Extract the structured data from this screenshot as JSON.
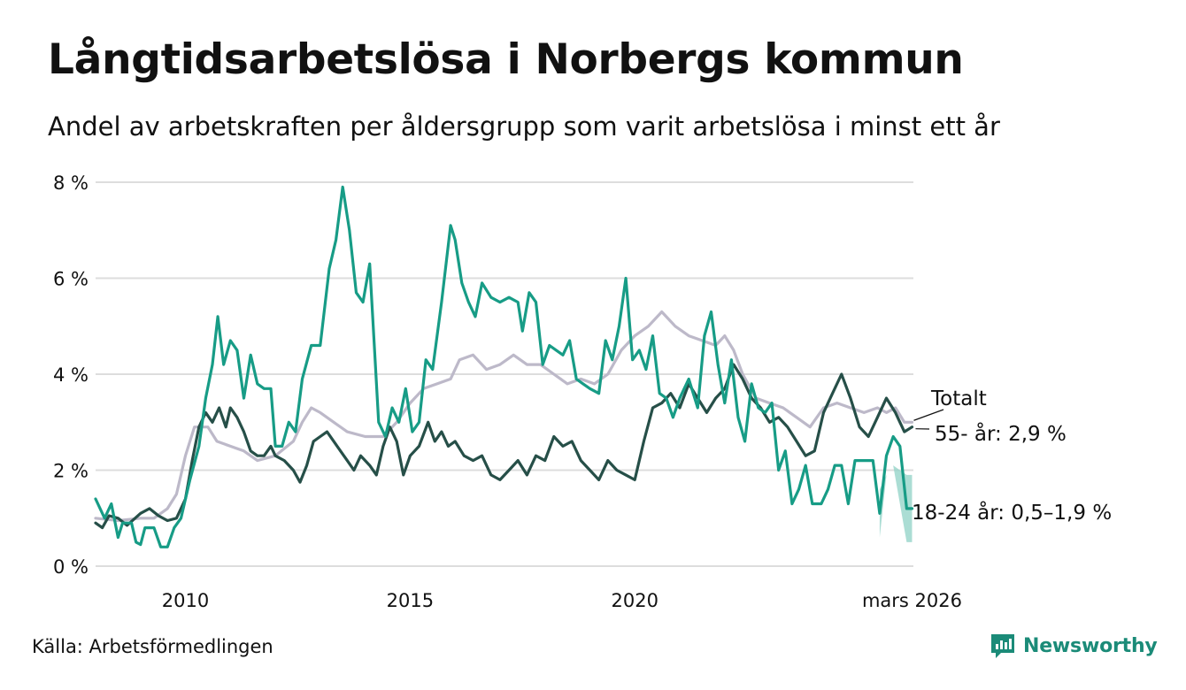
{
  "header": {
    "title": "Långtidsarbetslösa i Norbergs kommun",
    "subtitle": "Andel av arbetskraften per åldersgrupp som varit arbetslösa i minst ett år"
  },
  "footer": {
    "source": "Källa: Arbetsförmedlingen",
    "brand": "Newsworthy"
  },
  "colors": {
    "total": "#bdb9c9",
    "age55": "#264f48",
    "age18_24": "#179c86",
    "range": "#8fd2c6",
    "grid": "#dddddd"
  },
  "chart_data": {
    "type": "line",
    "title": "Långtidsarbetslösa i Norbergs kommun",
    "xlabel": "",
    "ylabel": "",
    "xlim": [
      2008.0,
      2026.2
    ],
    "ylim": [
      0,
      8
    ],
    "y_ticks": [
      0,
      2,
      4,
      6,
      8
    ],
    "y_tick_labels": [
      "0 %",
      "2 %",
      "4 %",
      "6 %",
      "8 %"
    ],
    "x_ticks": [
      2010,
      2015,
      2020,
      2026.17
    ],
    "x_tick_labels": [
      "2010",
      "2015",
      "2020",
      "mars 2026"
    ],
    "grid": true,
    "series": [
      {
        "name": "Totalt",
        "label": "Totalt",
        "points": [
          [
            2008.0,
            1.0
          ],
          [
            2008.5,
            0.95
          ],
          [
            2009.0,
            1.0
          ],
          [
            2009.3,
            1.0
          ],
          [
            2009.6,
            1.2
          ],
          [
            2009.8,
            1.5
          ],
          [
            2010.0,
            2.3
          ],
          [
            2010.2,
            2.9
          ],
          [
            2010.5,
            2.9
          ],
          [
            2010.7,
            2.6
          ],
          [
            2011.0,
            2.5
          ],
          [
            2011.3,
            2.4
          ],
          [
            2011.6,
            2.2
          ],
          [
            2012.0,
            2.3
          ],
          [
            2012.4,
            2.6
          ],
          [
            2012.6,
            3.0
          ],
          [
            2012.8,
            3.3
          ],
          [
            2013.0,
            3.2
          ],
          [
            2013.3,
            3.0
          ],
          [
            2013.6,
            2.8
          ],
          [
            2014.0,
            2.7
          ],
          [
            2014.4,
            2.7
          ],
          [
            2014.7,
            3.0
          ],
          [
            2015.0,
            3.4
          ],
          [
            2015.3,
            3.7
          ],
          [
            2015.6,
            3.8
          ],
          [
            2015.9,
            3.9
          ],
          [
            2016.1,
            4.3
          ],
          [
            2016.4,
            4.4
          ],
          [
            2016.7,
            4.1
          ],
          [
            2017.0,
            4.2
          ],
          [
            2017.3,
            4.4
          ],
          [
            2017.6,
            4.2
          ],
          [
            2017.9,
            4.2
          ],
          [
            2018.2,
            4.0
          ],
          [
            2018.5,
            3.8
          ],
          [
            2018.8,
            3.9
          ],
          [
            2019.1,
            3.8
          ],
          [
            2019.4,
            4.0
          ],
          [
            2019.7,
            4.5
          ],
          [
            2020.0,
            4.8
          ],
          [
            2020.3,
            5.0
          ],
          [
            2020.6,
            5.3
          ],
          [
            2020.9,
            5.0
          ],
          [
            2021.2,
            4.8
          ],
          [
            2021.5,
            4.7
          ],
          [
            2021.8,
            4.6
          ],
          [
            2022.0,
            4.8
          ],
          [
            2022.2,
            4.5
          ],
          [
            2022.4,
            4.0
          ],
          [
            2022.7,
            3.5
          ],
          [
            2023.0,
            3.4
          ],
          [
            2023.3,
            3.3
          ],
          [
            2023.6,
            3.1
          ],
          [
            2023.9,
            2.9
          ],
          [
            2024.2,
            3.3
          ],
          [
            2024.5,
            3.4
          ],
          [
            2024.8,
            3.3
          ],
          [
            2025.1,
            3.2
          ],
          [
            2025.4,
            3.3
          ],
          [
            2025.6,
            3.2
          ],
          [
            2025.8,
            3.3
          ],
          [
            2026.0,
            3.0
          ],
          [
            2026.17,
            3.0
          ]
        ]
      },
      {
        "name": "55- år",
        "label": "55- år: 2,9 %",
        "points": [
          [
            2008.0,
            0.9
          ],
          [
            2008.15,
            0.8
          ],
          [
            2008.3,
            1.05
          ],
          [
            2008.5,
            1.0
          ],
          [
            2008.7,
            0.85
          ],
          [
            2009.0,
            1.1
          ],
          [
            2009.2,
            1.2
          ],
          [
            2009.4,
            1.05
          ],
          [
            2009.6,
            0.95
          ],
          [
            2009.8,
            1.0
          ],
          [
            2010.0,
            1.4
          ],
          [
            2010.15,
            2.2
          ],
          [
            2010.3,
            2.9
          ],
          [
            2010.45,
            3.2
          ],
          [
            2010.6,
            3.0
          ],
          [
            2010.75,
            3.3
          ],
          [
            2010.9,
            2.9
          ],
          [
            2011.0,
            3.3
          ],
          [
            2011.15,
            3.1
          ],
          [
            2011.3,
            2.8
          ],
          [
            2011.45,
            2.4
          ],
          [
            2011.6,
            2.3
          ],
          [
            2011.75,
            2.3
          ],
          [
            2011.9,
            2.5
          ],
          [
            2012.0,
            2.3
          ],
          [
            2012.2,
            2.2
          ],
          [
            2012.4,
            2.0
          ],
          [
            2012.55,
            1.75
          ],
          [
            2012.7,
            2.1
          ],
          [
            2012.85,
            2.6
          ],
          [
            2013.0,
            2.7
          ],
          [
            2013.15,
            2.8
          ],
          [
            2013.3,
            2.6
          ],
          [
            2013.45,
            2.4
          ],
          [
            2013.6,
            2.2
          ],
          [
            2013.75,
            2.0
          ],
          [
            2013.9,
            2.3
          ],
          [
            2014.1,
            2.1
          ],
          [
            2014.25,
            1.9
          ],
          [
            2014.4,
            2.5
          ],
          [
            2014.55,
            2.9
          ],
          [
            2014.7,
            2.6
          ],
          [
            2014.85,
            1.9
          ],
          [
            2015.0,
            2.3
          ],
          [
            2015.2,
            2.5
          ],
          [
            2015.4,
            3.0
          ],
          [
            2015.55,
            2.6
          ],
          [
            2015.7,
            2.8
          ],
          [
            2015.85,
            2.5
          ],
          [
            2016.0,
            2.6
          ],
          [
            2016.2,
            2.3
          ],
          [
            2016.4,
            2.2
          ],
          [
            2016.6,
            2.3
          ],
          [
            2016.8,
            1.9
          ],
          [
            2017.0,
            1.8
          ],
          [
            2017.2,
            2.0
          ],
          [
            2017.4,
            2.2
          ],
          [
            2017.6,
            1.9
          ],
          [
            2017.8,
            2.3
          ],
          [
            2018.0,
            2.2
          ],
          [
            2018.2,
            2.7
          ],
          [
            2018.4,
            2.5
          ],
          [
            2018.6,
            2.6
          ],
          [
            2018.8,
            2.2
          ],
          [
            2019.0,
            2.0
          ],
          [
            2019.2,
            1.8
          ],
          [
            2019.4,
            2.2
          ],
          [
            2019.6,
            2.0
          ],
          [
            2019.8,
            1.9
          ],
          [
            2020.0,
            1.8
          ],
          [
            2020.2,
            2.6
          ],
          [
            2020.4,
            3.3
          ],
          [
            2020.6,
            3.4
          ],
          [
            2020.8,
            3.6
          ],
          [
            2021.0,
            3.3
          ],
          [
            2021.2,
            3.8
          ],
          [
            2021.4,
            3.5
          ],
          [
            2021.6,
            3.2
          ],
          [
            2021.8,
            3.5
          ],
          [
            2022.0,
            3.7
          ],
          [
            2022.2,
            4.2
          ],
          [
            2022.4,
            3.9
          ],
          [
            2022.6,
            3.5
          ],
          [
            2022.8,
            3.3
          ],
          [
            2023.0,
            3.0
          ],
          [
            2023.2,
            3.1
          ],
          [
            2023.4,
            2.9
          ],
          [
            2023.6,
            2.6
          ],
          [
            2023.8,
            2.3
          ],
          [
            2024.0,
            2.4
          ],
          [
            2024.2,
            3.2
          ],
          [
            2024.4,
            3.6
          ],
          [
            2024.6,
            4.0
          ],
          [
            2024.8,
            3.5
          ],
          [
            2025.0,
            2.9
          ],
          [
            2025.2,
            2.7
          ],
          [
            2025.4,
            3.1
          ],
          [
            2025.6,
            3.5
          ],
          [
            2025.8,
            3.2
          ],
          [
            2026.0,
            2.8
          ],
          [
            2026.17,
            2.9
          ]
        ]
      },
      {
        "name": "18-24 år",
        "label": "18-24 år: 0,5–1,9 %",
        "points": [
          [
            2008.0,
            1.4
          ],
          [
            2008.2,
            1.0
          ],
          [
            2008.35,
            1.3
          ],
          [
            2008.5,
            0.6
          ],
          [
            2008.6,
            0.9
          ],
          [
            2008.8,
            0.9
          ],
          [
            2008.9,
            0.5
          ],
          [
            2009.0,
            0.45
          ],
          [
            2009.1,
            0.8
          ],
          [
            2009.3,
            0.8
          ],
          [
            2009.45,
            0.4
          ],
          [
            2009.6,
            0.4
          ],
          [
            2009.75,
            0.8
          ],
          [
            2009.9,
            1.0
          ],
          [
            2010.1,
            1.8
          ],
          [
            2010.3,
            2.5
          ],
          [
            2010.45,
            3.5
          ],
          [
            2010.6,
            4.2
          ],
          [
            2010.72,
            5.2
          ],
          [
            2010.85,
            4.2
          ],
          [
            2011.0,
            4.7
          ],
          [
            2011.15,
            4.5
          ],
          [
            2011.3,
            3.5
          ],
          [
            2011.45,
            4.4
          ],
          [
            2011.6,
            3.8
          ],
          [
            2011.75,
            3.7
          ],
          [
            2011.9,
            3.7
          ],
          [
            2012.0,
            2.5
          ],
          [
            2012.15,
            2.5
          ],
          [
            2012.3,
            3.0
          ],
          [
            2012.45,
            2.8
          ],
          [
            2012.6,
            3.9
          ],
          [
            2012.8,
            4.6
          ],
          [
            2013.0,
            4.6
          ],
          [
            2013.2,
            6.2
          ],
          [
            2013.35,
            6.8
          ],
          [
            2013.5,
            7.9
          ],
          [
            2013.65,
            7.0
          ],
          [
            2013.8,
            5.7
          ],
          [
            2013.95,
            5.5
          ],
          [
            2014.1,
            6.3
          ],
          [
            2014.3,
            3.0
          ],
          [
            2014.45,
            2.7
          ],
          [
            2014.6,
            3.3
          ],
          [
            2014.75,
            3.0
          ],
          [
            2014.9,
            3.7
          ],
          [
            2015.05,
            2.8
          ],
          [
            2015.2,
            3.0
          ],
          [
            2015.35,
            4.3
          ],
          [
            2015.5,
            4.1
          ],
          [
            2015.7,
            5.5
          ],
          [
            2015.8,
            6.3
          ],
          [
            2015.9,
            7.1
          ],
          [
            2016.0,
            6.8
          ],
          [
            2016.15,
            5.9
          ],
          [
            2016.3,
            5.5
          ],
          [
            2016.45,
            5.2
          ],
          [
            2016.6,
            5.9
          ],
          [
            2016.8,
            5.6
          ],
          [
            2017.0,
            5.5
          ],
          [
            2017.2,
            5.6
          ],
          [
            2017.4,
            5.5
          ],
          [
            2017.5,
            4.9
          ],
          [
            2017.65,
            5.7
          ],
          [
            2017.8,
            5.5
          ],
          [
            2017.95,
            4.2
          ],
          [
            2018.1,
            4.6
          ],
          [
            2018.25,
            4.5
          ],
          [
            2018.4,
            4.4
          ],
          [
            2018.55,
            4.7
          ],
          [
            2018.7,
            3.9
          ],
          [
            2018.85,
            3.8
          ],
          [
            2019.0,
            3.7
          ],
          [
            2019.2,
            3.6
          ],
          [
            2019.35,
            4.7
          ],
          [
            2019.5,
            4.3
          ],
          [
            2019.65,
            5.0
          ],
          [
            2019.8,
            6.0
          ],
          [
            2019.95,
            4.3
          ],
          [
            2020.1,
            4.5
          ],
          [
            2020.25,
            4.1
          ],
          [
            2020.4,
            4.8
          ],
          [
            2020.55,
            3.6
          ],
          [
            2020.7,
            3.5
          ],
          [
            2020.85,
            3.1
          ],
          [
            2021.0,
            3.5
          ],
          [
            2021.2,
            3.9
          ],
          [
            2021.4,
            3.3
          ],
          [
            2021.55,
            4.8
          ],
          [
            2021.7,
            5.3
          ],
          [
            2021.85,
            4.2
          ],
          [
            2022.0,
            3.4
          ],
          [
            2022.15,
            4.3
          ],
          [
            2022.3,
            3.1
          ],
          [
            2022.45,
            2.6
          ],
          [
            2022.6,
            3.8
          ],
          [
            2022.75,
            3.3
          ],
          [
            2022.9,
            3.2
          ],
          [
            2023.05,
            3.4
          ],
          [
            2023.2,
            2.0
          ],
          [
            2023.35,
            2.4
          ],
          [
            2023.5,
            1.3
          ],
          [
            2023.65,
            1.6
          ],
          [
            2023.8,
            2.1
          ],
          [
            2023.95,
            1.3
          ],
          [
            2024.15,
            1.3
          ],
          [
            2024.3,
            1.6
          ],
          [
            2024.45,
            2.1
          ],
          [
            2024.6,
            2.1
          ],
          [
            2024.75,
            1.3
          ],
          [
            2024.9,
            2.2
          ],
          [
            2025.1,
            2.2
          ],
          [
            2025.3,
            2.2
          ],
          [
            2025.45,
            1.1
          ],
          [
            2025.6,
            2.3
          ],
          [
            2025.75,
            2.7
          ],
          [
            2025.9,
            2.5
          ],
          [
            2026.05,
            1.2
          ],
          [
            2026.17,
            1.2
          ]
        ]
      }
    ],
    "uncertainty_band": {
      "series": "18-24 år",
      "points": [
        [
          2025.45,
          0.6,
          1.6
        ],
        [
          2025.6,
          1.9,
          1.9
        ],
        [
          2025.75,
          2.1,
          2.1
        ],
        [
          2026.05,
          0.5,
          1.9
        ],
        [
          2026.17,
          0.5,
          1.9
        ]
      ]
    }
  }
}
